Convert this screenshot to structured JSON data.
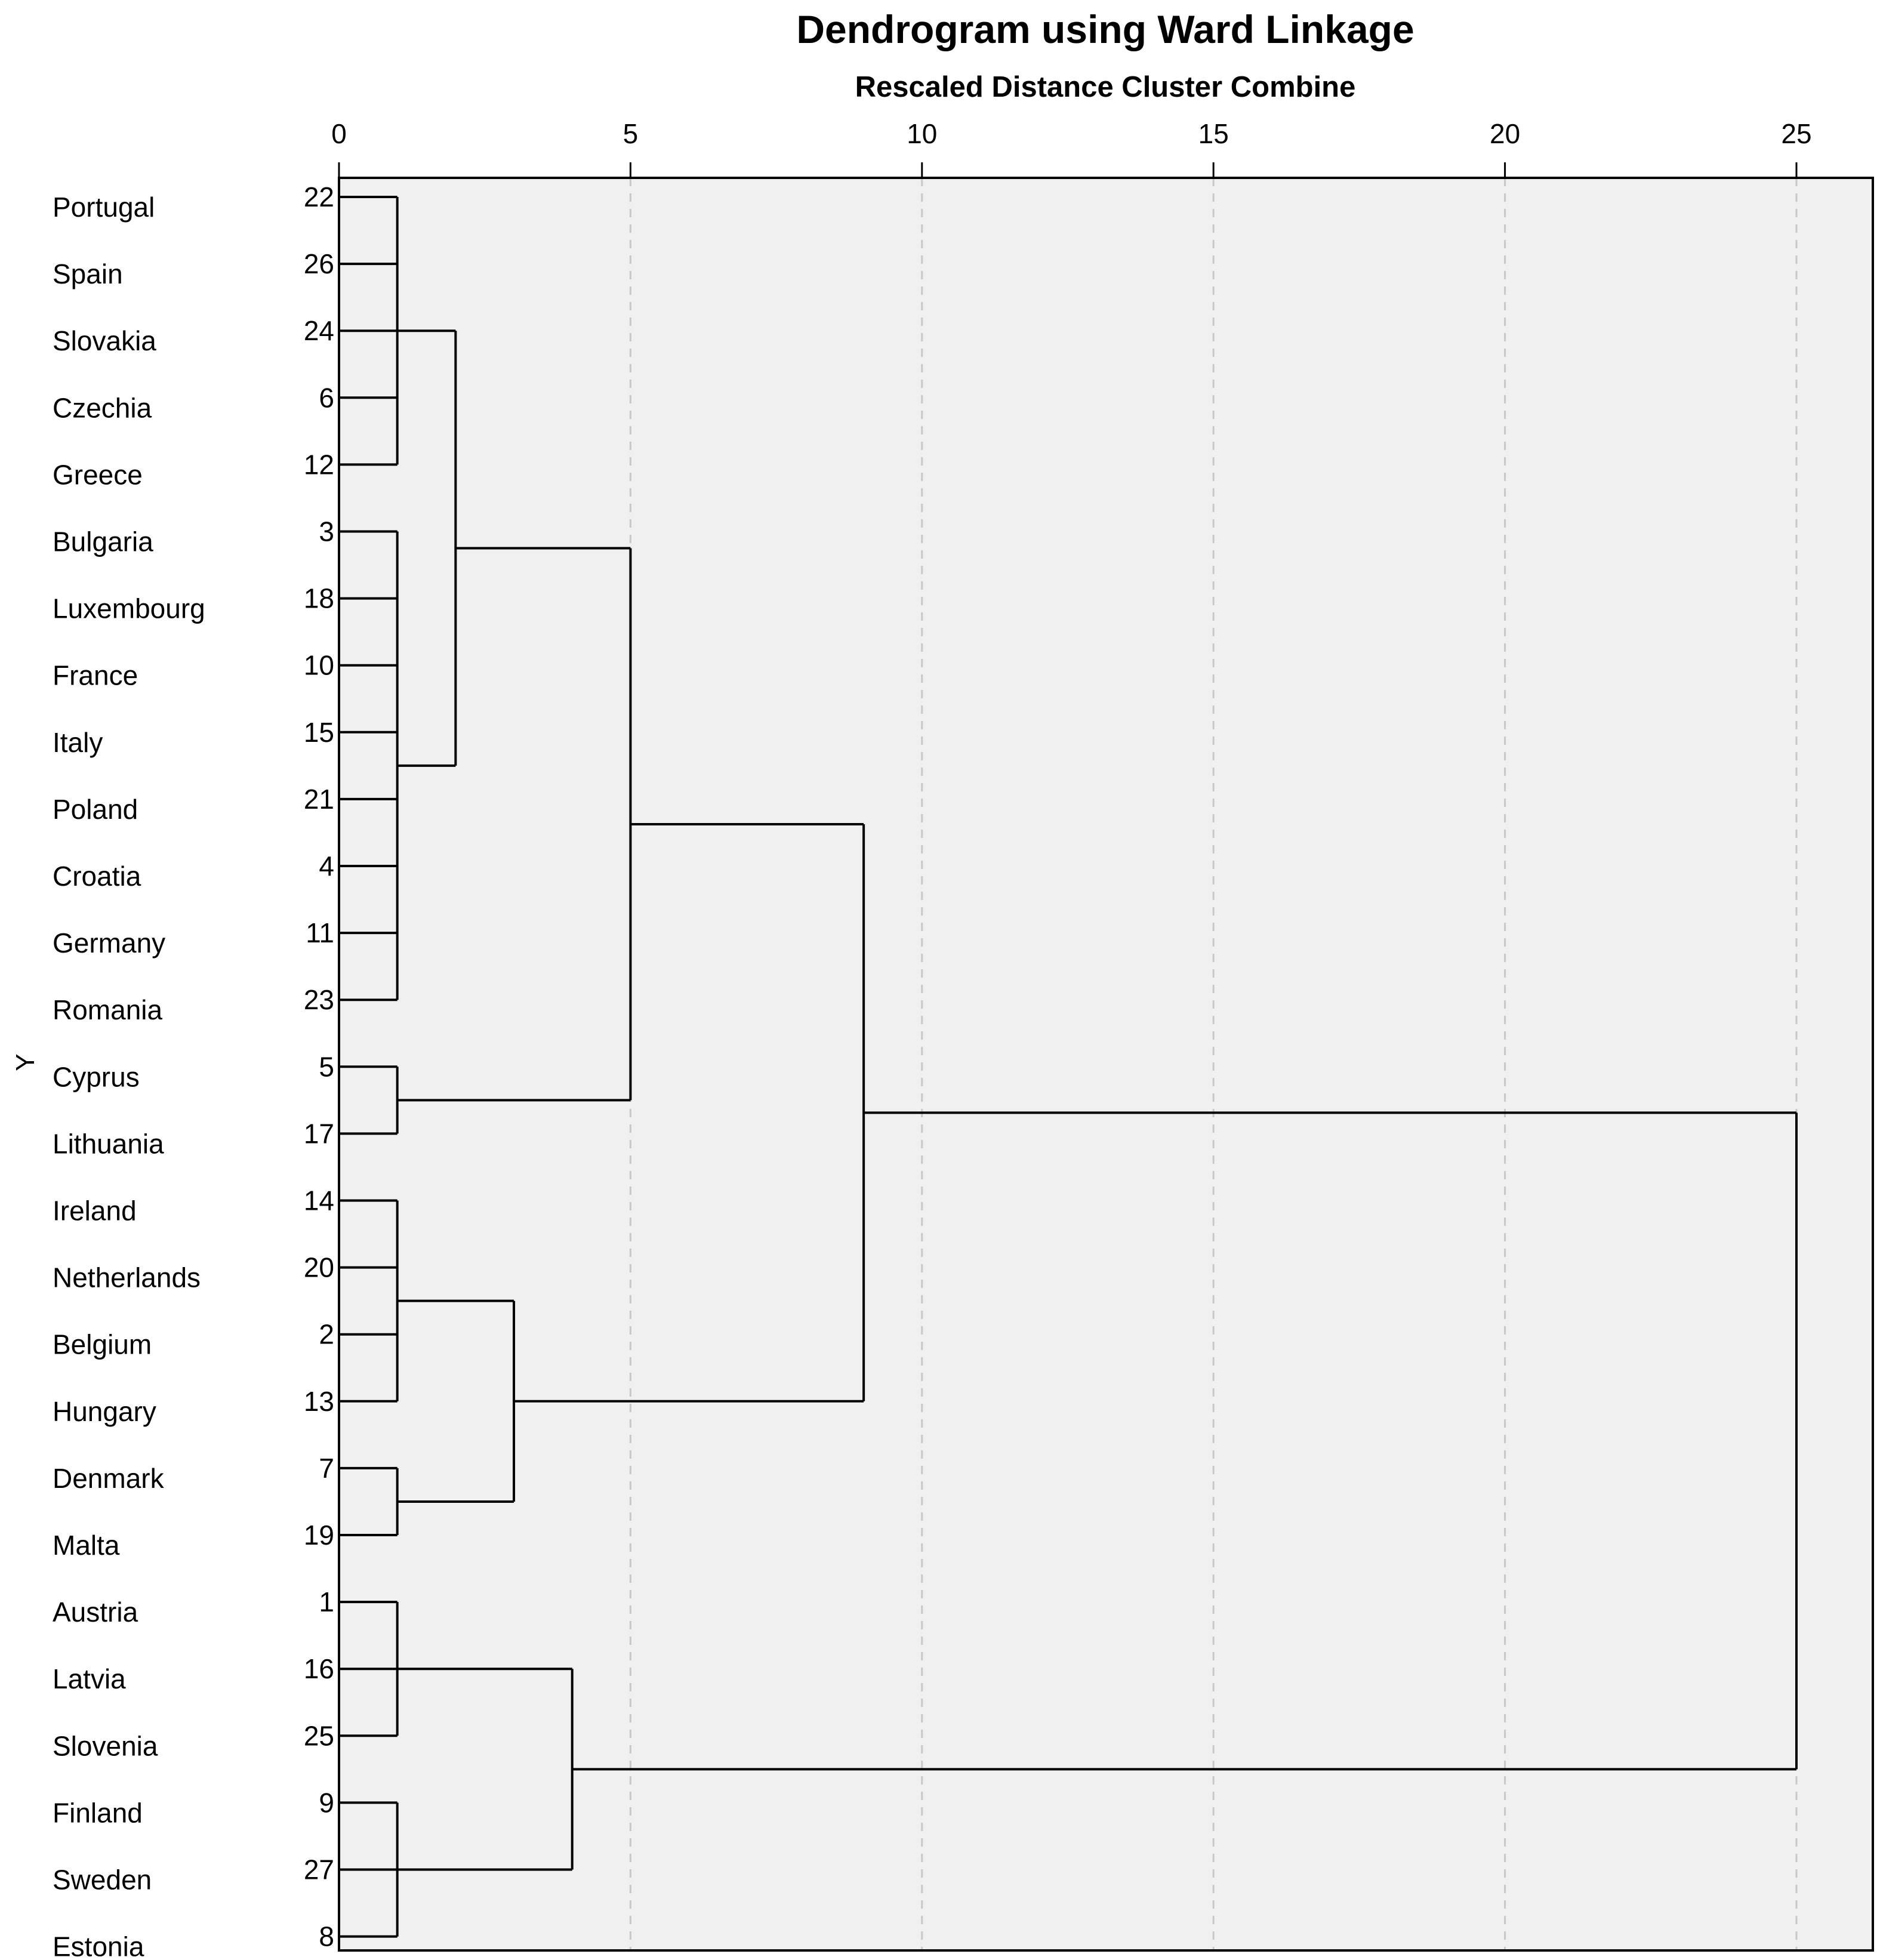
{
  "chart_data": {
    "type": "dendrogram",
    "title": "Dendrogram using Ward Linkage",
    "subtitle": "Rescaled Distance Cluster Combine",
    "ylabel": "Y",
    "xlim": [
      0,
      26.3
    ],
    "x_ticks": [
      0,
      5,
      10,
      15,
      20,
      25
    ],
    "gridlines": true,
    "leaves": [
      {
        "name": "Portugal",
        "id": "22"
      },
      {
        "name": "Spain",
        "id": "26"
      },
      {
        "name": "Slovakia",
        "id": "24"
      },
      {
        "name": "Czechia",
        "id": "6"
      },
      {
        "name": "Greece",
        "id": "12"
      },
      {
        "name": "Bulgaria",
        "id": "3"
      },
      {
        "name": "Luxembourg",
        "id": "18"
      },
      {
        "name": "France",
        "id": "10"
      },
      {
        "name": "Italy",
        "id": "15"
      },
      {
        "name": "Poland",
        "id": "21"
      },
      {
        "name": "Croatia",
        "id": "4"
      },
      {
        "name": "Germany",
        "id": "11"
      },
      {
        "name": "Romania",
        "id": "23"
      },
      {
        "name": "Cyprus",
        "id": "5"
      },
      {
        "name": "Lithuania",
        "id": "17"
      },
      {
        "name": "Ireland",
        "id": "14"
      },
      {
        "name": "Netherlands",
        "id": "20"
      },
      {
        "name": "Belgium",
        "id": "2"
      },
      {
        "name": "Hungary",
        "id": "13"
      },
      {
        "name": "Denmark",
        "id": "7"
      },
      {
        "name": "Malta",
        "id": "19"
      },
      {
        "name": "Austria",
        "id": "1"
      },
      {
        "name": "Latvia",
        "id": "16"
      },
      {
        "name": "Slovenia",
        "id": "25"
      },
      {
        "name": "Finland",
        "id": "9"
      },
      {
        "name": "Sweden",
        "id": "27"
      },
      {
        "name": "Estonia",
        "id": "8"
      }
    ],
    "clusters": [
      {
        "id": "A",
        "height": 1,
        "members": [
          0,
          1,
          2,
          3,
          4
        ]
      },
      {
        "id": "B",
        "height": 1,
        "members": [
          5,
          6,
          7,
          8,
          9,
          10,
          11,
          12
        ]
      },
      {
        "id": "C",
        "height": 1,
        "members": [
          13,
          14
        ]
      },
      {
        "id": "D",
        "height": 1,
        "members": [
          15,
          16,
          17,
          18
        ]
      },
      {
        "id": "E",
        "height": 1,
        "members": [
          19,
          20
        ]
      },
      {
        "id": "F",
        "height": 1,
        "members": [
          21,
          22,
          23
        ]
      },
      {
        "id": "G",
        "height": 1,
        "members": [
          24,
          25,
          26
        ]
      },
      {
        "id": "AB",
        "height": 2,
        "members": [
          "A",
          "B"
        ]
      },
      {
        "id": "DE",
        "height": 3,
        "members": [
          "D",
          "E"
        ]
      },
      {
        "id": "FG",
        "height": 4,
        "members": [
          "F",
          "G"
        ]
      },
      {
        "id": "ABC",
        "height": 5,
        "members": [
          "AB",
          "C"
        ]
      },
      {
        "id": "ABCDE",
        "height": 9,
        "members": [
          "ABC",
          "DE"
        ]
      },
      {
        "id": "ALL",
        "height": 25,
        "members": [
          "ABCDE",
          "FG"
        ]
      }
    ]
  }
}
